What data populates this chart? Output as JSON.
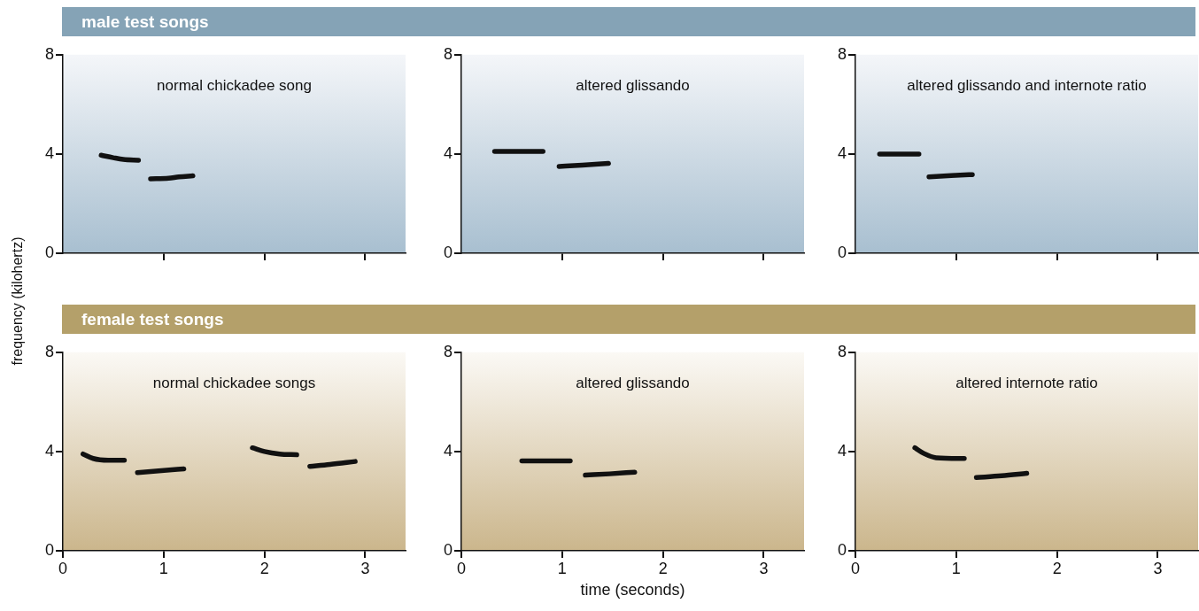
{
  "chart_data": [
    {
      "type": "line",
      "title": "normal chickadee song",
      "annotations": [
        "male test songs"
      ],
      "ylabel": "frequency (kilohertz)",
      "ylim": [
        0,
        8
      ],
      "yticks": [
        0,
        4,
        8
      ],
      "xlim": [
        0,
        3.4
      ],
      "xticks": [
        {
          "value": 1,
          "label": null
        },
        {
          "value": 2,
          "label": null
        },
        {
          "value": 3,
          "label": null
        }
      ],
      "tick_labels": "y",
      "grid": false,
      "legend": false,
      "marker": "none",
      "line_style": "solid",
      "series": [
        {
          "color": "#111111",
          "x": [
            0.38,
            0.5,
            0.6,
            0.75
          ],
          "values": [
            3.95,
            3.85,
            3.78,
            3.75
          ]
        },
        {
          "color": "#111111",
          "x": [
            0.87,
            1.05,
            1.15,
            1.29
          ],
          "values": [
            3.0,
            3.02,
            3.08,
            3.12
          ]
        }
      ]
    },
    {
      "type": "line",
      "title": "altered glissando",
      "ylim": [
        0,
        8
      ],
      "yticks": [
        0,
        4,
        8
      ],
      "xlim": [
        0,
        3.4
      ],
      "xticks": [
        {
          "value": 1,
          "label": null
        },
        {
          "value": 2,
          "label": null
        },
        {
          "value": 3,
          "label": null
        }
      ],
      "tick_labels": "y",
      "grid": false,
      "legend": false,
      "marker": "none",
      "line_style": "solid",
      "series": [
        {
          "color": "#111111",
          "x": [
            0.33,
            0.81
          ],
          "values": [
            4.1,
            4.1
          ]
        },
        {
          "color": "#111111",
          "x": [
            0.97,
            1.2,
            1.46
          ],
          "values": [
            3.5,
            3.55,
            3.62
          ]
        }
      ]
    },
    {
      "type": "line",
      "title": "altered glissando and internote ratio",
      "ylim": [
        0,
        8
      ],
      "yticks": [
        0,
        4,
        8
      ],
      "xlim": [
        0,
        3.4
      ],
      "xticks": [
        {
          "value": 1,
          "label": null
        },
        {
          "value": 2,
          "label": null
        },
        {
          "value": 3,
          "label": null
        }
      ],
      "tick_labels": "y",
      "grid": false,
      "legend": false,
      "marker": "none",
      "line_style": "solid",
      "series": [
        {
          "color": "#111111",
          "x": [
            0.24,
            0.63
          ],
          "values": [
            4.0,
            4.0
          ]
        },
        {
          "color": "#111111",
          "x": [
            0.73,
            0.95,
            1.16
          ],
          "values": [
            3.08,
            3.13,
            3.17
          ]
        }
      ]
    },
    {
      "type": "line",
      "title": "normal chickadee songs",
      "annotations": [
        "female test songs"
      ],
      "ylim": [
        0,
        8
      ],
      "yticks": [
        0,
        4,
        8
      ],
      "xlim": [
        0,
        3.4
      ],
      "xticks": [
        0,
        1,
        2,
        3
      ],
      "grid": false,
      "legend": false,
      "marker": "none",
      "line_style": "solid",
      "series": [
        {
          "color": "#111111",
          "x": [
            0.2,
            0.3,
            0.45,
            0.61
          ],
          "values": [
            3.9,
            3.72,
            3.65,
            3.65
          ]
        },
        {
          "color": "#111111",
          "x": [
            0.74,
            0.95,
            1.2
          ],
          "values": [
            3.15,
            3.22,
            3.3
          ]
        },
        {
          "color": "#111111",
          "x": [
            1.88,
            2.0,
            2.15,
            2.32
          ],
          "values": [
            4.15,
            4.0,
            3.9,
            3.87
          ]
        },
        {
          "color": "#111111",
          "x": [
            2.45,
            2.65,
            2.9
          ],
          "values": [
            3.4,
            3.48,
            3.6
          ]
        }
      ]
    },
    {
      "type": "line",
      "title": "altered glissando",
      "xlabel": "time (seconds)",
      "ylim": [
        0,
        8
      ],
      "yticks": [
        0,
        4,
        8
      ],
      "xlim": [
        0,
        3.4
      ],
      "xticks": [
        0,
        1,
        2,
        3
      ],
      "grid": false,
      "legend": false,
      "marker": "none",
      "line_style": "solid",
      "series": [
        {
          "color": "#111111",
          "x": [
            0.6,
            1.08
          ],
          "values": [
            3.62,
            3.62
          ]
        },
        {
          "color": "#111111",
          "x": [
            1.23,
            1.47,
            1.72
          ],
          "values": [
            3.05,
            3.1,
            3.17
          ]
        }
      ]
    },
    {
      "type": "line",
      "title": "altered internote ratio",
      "ylim": [
        0,
        8
      ],
      "yticks": [
        0,
        4,
        8
      ],
      "xlim": [
        0,
        3.4
      ],
      "xticks": [
        0,
        1,
        2,
        3
      ],
      "grid": false,
      "legend": false,
      "marker": "none",
      "line_style": "solid",
      "series": [
        {
          "color": "#111111",
          "x": [
            0.59,
            0.68,
            0.8,
            1.08
          ],
          "values": [
            4.15,
            3.92,
            3.75,
            3.72
          ]
        },
        {
          "color": "#111111",
          "x": [
            1.2,
            1.45,
            1.7
          ],
          "values": [
            2.95,
            3.02,
            3.12
          ]
        }
      ]
    }
  ]
}
